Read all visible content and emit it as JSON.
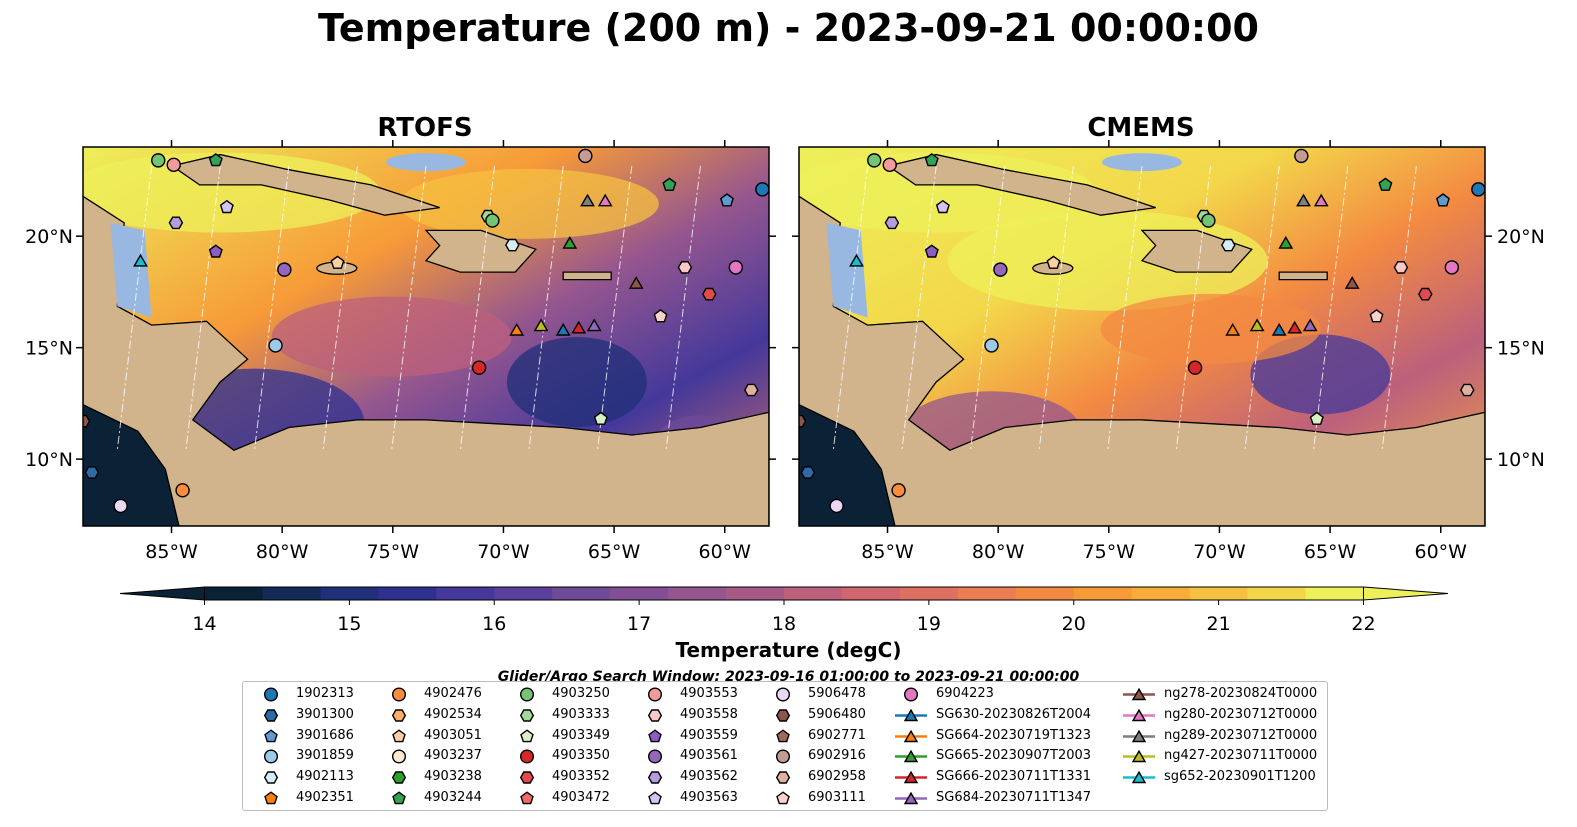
{
  "title": "Temperature (200 m) - 2023-09-21 00:00:00",
  "panels": [
    {
      "name": "rtofs",
      "title": "RTOFS"
    },
    {
      "name": "cmems",
      "title": "CMEMS"
    }
  ],
  "map_extent": {
    "lon_min": -89,
    "lon_max": -58,
    "lat_min": 7,
    "lat_max": 24
  },
  "lon_ticks": [
    {
      "value": -85,
      "label": "85°W"
    },
    {
      "value": -80,
      "label": "80°W"
    },
    {
      "value": -75,
      "label": "75°W"
    },
    {
      "value": -70,
      "label": "70°W"
    },
    {
      "value": -65,
      "label": "65°W"
    },
    {
      "value": -60,
      "label": "60°W"
    }
  ],
  "lat_ticks": [
    {
      "value": 20,
      "label": "20°N"
    },
    {
      "value": 15,
      "label": "15°N"
    },
    {
      "value": 10,
      "label": "10°N"
    }
  ],
  "colorbar": {
    "label": "Temperature (degC)",
    "min": 14,
    "max": 22,
    "step": 0.5,
    "ticks": [
      "14",
      "15",
      "16",
      "17",
      "18",
      "19",
      "20",
      "21",
      "22"
    ],
    "extend": "both",
    "colors": [
      "#0b2136",
      "#122a55",
      "#1f2f78",
      "#2e3190",
      "#44389b",
      "#5a3f9c",
      "#6f4a99",
      "#824f95",
      "#95568f",
      "#a85a87",
      "#bc607c",
      "#cf6670",
      "#de7062",
      "#ea7d51",
      "#f38a42",
      "#f79a38",
      "#f8ac39",
      "#f6c040",
      "#f3d74a",
      "#edf05a"
    ],
    "ocean_land": {
      "land": "#d2b48c",
      "shelf": "#99b8e1"
    }
  },
  "search_window": "Glider/Argo Search Window: 2023-09-16 01:00:00 to 2023-09-21 00:00:00",
  "legend_items": [
    {
      "label": "1902313",
      "marker": "circle",
      "color": "#1f77b4"
    },
    {
      "label": "3901300",
      "marker": "hexagon",
      "color": "#2c6aa8"
    },
    {
      "label": "3901686",
      "marker": "pentagon",
      "color": "#5d9bd1"
    },
    {
      "label": "3901859",
      "marker": "circle",
      "color": "#9ecae9"
    },
    {
      "label": "4902113",
      "marker": "hexagon",
      "color": "#d6ecf6"
    },
    {
      "label": "4902351",
      "marker": "pentagon",
      "color": "#ff7f0e"
    },
    {
      "label": "4902476",
      "marker": "circle",
      "color": "#fd8d3c"
    },
    {
      "label": "4902534",
      "marker": "hexagon",
      "color": "#fdae6b"
    },
    {
      "label": "4903051",
      "marker": "pentagon",
      "color": "#fdd0a2"
    },
    {
      "label": "4903237",
      "marker": "circle",
      "color": "#feead3"
    },
    {
      "label": "4903238",
      "marker": "hexagon",
      "color": "#2ca02c"
    },
    {
      "label": "4903244",
      "marker": "pentagon",
      "color": "#31a354"
    },
    {
      "label": "4903250",
      "marker": "circle",
      "color": "#74c476"
    },
    {
      "label": "4903333",
      "marker": "hexagon",
      "color": "#a1d99b"
    },
    {
      "label": "4903349",
      "marker": "pentagon",
      "color": "#d9f0c6"
    },
    {
      "label": "4903350",
      "marker": "circle",
      "color": "#d62728"
    },
    {
      "label": "4903352",
      "marker": "hexagon",
      "color": "#e34a4a"
    },
    {
      "label": "4903472",
      "marker": "pentagon",
      "color": "#f06a6a"
    },
    {
      "label": "4903553",
      "marker": "circle",
      "color": "#f39b9b"
    },
    {
      "label": "4903558",
      "marker": "hexagon",
      "color": "#fbc8c8"
    },
    {
      "label": "4903559",
      "marker": "pentagon",
      "color": "#8a5cc4"
    },
    {
      "label": "4903561",
      "marker": "circle",
      "color": "#9467bd"
    },
    {
      "label": "4903562",
      "marker": "hexagon",
      "color": "#b39ddb"
    },
    {
      "label": "4903563",
      "marker": "pentagon",
      "color": "#d2c4ee"
    },
    {
      "label": "5906478",
      "marker": "circle",
      "color": "#ead9f5"
    },
    {
      "label": "5906480",
      "marker": "hexagon",
      "color": "#8c564b"
    },
    {
      "label": "6902771",
      "marker": "pentagon",
      "color": "#a0695a"
    },
    {
      "label": "6902916",
      "marker": "circle",
      "color": "#c49c94"
    },
    {
      "label": "6902958",
      "marker": "hexagon",
      "color": "#e0b0a0"
    },
    {
      "label": "6903111",
      "marker": "pentagon",
      "color": "#f7d3c9"
    },
    {
      "label": "6904223",
      "marker": "circle",
      "color": "#e377c2"
    },
    {
      "label": "SG630-20230826T2004",
      "marker": "triangle-line",
      "color": "#1f77b4"
    },
    {
      "label": "SG664-20230719T1323",
      "marker": "triangle-line",
      "color": "#ff7f0e"
    },
    {
      "label": "SG665-20230907T2003",
      "marker": "triangle-line",
      "color": "#2ca02c"
    },
    {
      "label": "SG666-20230711T1331",
      "marker": "triangle-line",
      "color": "#d62728"
    },
    {
      "label": "SG684-20230711T1347",
      "marker": "triangle-line",
      "color": "#9467bd"
    },
    {
      "label": "ng278-20230824T0000",
      "marker": "triangle-line",
      "color": "#8c564b"
    },
    {
      "label": "ng280-20230712T0000",
      "marker": "triangle-line",
      "color": "#e377c2"
    },
    {
      "label": "ng289-20230712T0000",
      "marker": "triangle-line",
      "color": "#7f7f7f"
    },
    {
      "label": "ng427-20230711T0000",
      "marker": "triangle-line",
      "color": "#bcbd22"
    },
    {
      "label": "sg652-20230901T1200",
      "marker": "triangle-line",
      "color": "#17becf"
    }
  ],
  "observations": [
    {
      "id": "4903250",
      "lon": -85.6,
      "lat": 23.4
    },
    {
      "id": "4903553",
      "lon": -84.9,
      "lat": 23.2
    },
    {
      "id": "4903244",
      "lon": -83.0,
      "lat": 23.4
    },
    {
      "id": "6902916",
      "lon": -66.3,
      "lat": 23.6
    },
    {
      "id": "4903244",
      "lon": -62.5,
      "lat": 22.3
    },
    {
      "id": "3901686",
      "lon": -59.9,
      "lat": 21.6
    },
    {
      "id": "1902313",
      "lon": -58.3,
      "lat": 22.1
    },
    {
      "id": "ng289-20230712T0000",
      "lon": -66.2,
      "lat": 21.6
    },
    {
      "id": "ng280-20230712T0000",
      "lon": -65.4,
      "lat": 21.6
    },
    {
      "id": "4903563",
      "lon": -82.5,
      "lat": 21.3
    },
    {
      "id": "4903562",
      "lon": -84.8,
      "lat": 20.6
    },
    {
      "id": "4903333",
      "lon": -70.7,
      "lat": 20.9
    },
    {
      "id": "4903250",
      "lon": -70.5,
      "lat": 20.7
    },
    {
      "id": "SG665-20230907T2003",
      "lon": -67.0,
      "lat": 19.7
    },
    {
      "id": "4902113",
      "lon": -69.6,
      "lat": 19.6
    },
    {
      "id": "4903559",
      "lon": -83.0,
      "lat": 19.3
    },
    {
      "id": "sg652-20230901T1200",
      "lon": -86.4,
      "lat": 18.9
    },
    {
      "id": "4903561",
      "lon": -79.9,
      "lat": 18.5
    },
    {
      "id": "4903051",
      "lon": -77.5,
      "lat": 18.8
    },
    {
      "id": "6904223",
      "lon": -59.5,
      "lat": 18.6
    },
    {
      "id": "4903558",
      "lon": -61.8,
      "lat": 18.6
    },
    {
      "id": "ng278-20230824T0000",
      "lon": -64.0,
      "lat": 17.9
    },
    {
      "id": "4903352",
      "lon": -60.7,
      "lat": 17.4
    },
    {
      "id": "6903111",
      "lon": -62.9,
      "lat": 16.4
    },
    {
      "id": "SG664-20230719T1323",
      "lon": -69.4,
      "lat": 15.8
    },
    {
      "id": "ng427-20230711T0000",
      "lon": -68.3,
      "lat": 16.0
    },
    {
      "id": "SG666-20230711T1331",
      "lon": -66.6,
      "lat": 15.9
    },
    {
      "id": "SG630-20230826T2004",
      "lon": -67.3,
      "lat": 15.8
    },
    {
      "id": "SG684-20230711T1347",
      "lon": -65.9,
      "lat": 16.0
    },
    {
      "id": "3901859",
      "lon": -80.3,
      "lat": 15.1
    },
    {
      "id": "4903350",
      "lon": -71.1,
      "lat": 14.1
    },
    {
      "id": "6902958",
      "lon": -58.8,
      "lat": 13.1
    },
    {
      "id": "4903349",
      "lon": -65.6,
      "lat": 11.8
    },
    {
      "id": "5906480",
      "lon": -89.0,
      "lat": 11.7
    },
    {
      "id": "3901300",
      "lon": -88.6,
      "lat": 9.4
    },
    {
      "id": "4902476",
      "lon": -84.5,
      "lat": 8.6
    },
    {
      "id": "5906478",
      "lon": -87.3,
      "lat": 7.9
    }
  ]
}
